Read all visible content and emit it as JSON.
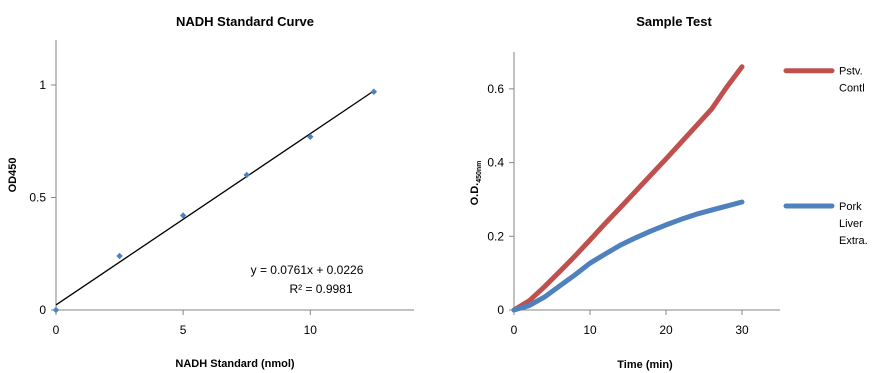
{
  "chart_data": [
    {
      "type": "scatter",
      "title": "NADH Standard Curve",
      "xlabel": "NADH Standard (nmol)",
      "ylabel": "OD450",
      "xlim": [
        0,
        14
      ],
      "ylim": [
        0,
        1.2
      ],
      "x_ticks": [
        "0",
        "5",
        "10"
      ],
      "y_ticks": [
        "0",
        "0.5",
        "1"
      ],
      "points": [
        {
          "x": 0,
          "y": 0.0
        },
        {
          "x": 2.5,
          "y": 0.24
        },
        {
          "x": 5,
          "y": 0.42
        },
        {
          "x": 7.5,
          "y": 0.6
        },
        {
          "x": 10,
          "y": 0.77
        },
        {
          "x": 12.5,
          "y": 0.97
        }
      ],
      "trendline": {
        "slope": 0.0761,
        "intercept": 0.0226,
        "x_range": [
          0,
          12.5
        ]
      },
      "equation": "y = 0.0761x + 0.0226",
      "r_squared": "R² = 0.9981",
      "marker_color": "#4F81BD",
      "grid": false
    },
    {
      "type": "line",
      "title": "Sample Test",
      "xlabel": "Time (min)",
      "ylabel_main": "O.D.",
      "ylabel_sub": "450nm",
      "xlim": [
        0,
        35
      ],
      "ylim": [
        0,
        0.7
      ],
      "x_ticks": [
        "0",
        "10",
        "20",
        "30"
      ],
      "y_ticks": [
        "0",
        "0.2",
        "0.4",
        "0.6"
      ],
      "series": [
        {
          "name": "Pstv. Contl",
          "legend_lines": [
            "Pstv.",
            "Contl"
          ],
          "color": "#C0504D",
          "x": [
            0,
            2,
            4,
            6,
            8,
            10,
            12,
            14,
            16,
            18,
            20,
            22,
            24,
            26,
            28,
            30
          ],
          "y": [
            0,
            0.025,
            0.063,
            0.104,
            0.146,
            0.19,
            0.235,
            0.278,
            0.322,
            0.366,
            0.41,
            0.455,
            0.5,
            0.545,
            0.605,
            0.66
          ]
        },
        {
          "name": "Pork Liver Extra.",
          "legend_lines": [
            "Pork",
            "Liver",
            "Extra."
          ],
          "color": "#4F81BD",
          "x": [
            0,
            2,
            4,
            6,
            8,
            10,
            12,
            14,
            16,
            18,
            20,
            22,
            24,
            26,
            28,
            30
          ],
          "y": [
            0,
            0.012,
            0.035,
            0.065,
            0.095,
            0.127,
            0.152,
            0.176,
            0.196,
            0.214,
            0.231,
            0.246,
            0.26,
            0.271,
            0.282,
            0.293
          ]
        }
      ],
      "legend_position": "right",
      "grid": false
    }
  ]
}
